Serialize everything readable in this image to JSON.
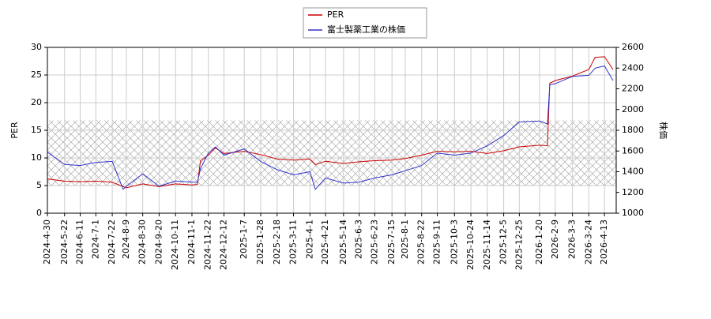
{
  "chart_data": {
    "type": "line",
    "x": [
      "2024-4-30",
      "2024-5-22",
      "2024-6-11",
      "2024-7-1",
      "2024-7-22",
      "2024-8-5",
      "2024-8-9",
      "2024-8-30",
      "2024-9-20",
      "2024-10-11",
      "2024-11-1",
      "2024-11-8",
      "2024-11-12",
      "2024-11-22",
      "2024-12-1",
      "2024-12-12",
      "2025-1-7",
      "2025-1-28",
      "2025-2-18",
      "2025-3-11",
      "2025-4-1",
      "2025-4-8",
      "2025-4-21",
      "2025-5-14",
      "2025-6-3",
      "2025-6-23",
      "2025-7-15",
      "2025-8-1",
      "2025-8-22",
      "2025-9-11",
      "2025-10-3",
      "2025-10-24",
      "2025-11-14",
      "2025-12-5",
      "2025-12-25",
      "2026-1-20",
      "2026-1-30",
      "2026-2-2",
      "2026-2-9",
      "2026-3-3",
      "2026-3-24",
      "2026-4-1",
      "2026-4-13",
      "2026-4-24"
    ],
    "series": [
      {
        "name": "PER",
        "color": "#cc0000",
        "axis": "y",
        "values": [
          6.2,
          5.8,
          5.7,
          5.8,
          5.6,
          4.8,
          4.6,
          5.3,
          4.8,
          5.3,
          5.1,
          5.2,
          9.5,
          10.5,
          11.8,
          10.8,
          11.2,
          10.6,
          9.8,
          9.6,
          9.8,
          8.8,
          9.4,
          9.0,
          9.3,
          9.5,
          9.6,
          9.9,
          10.5,
          11.2,
          11.1,
          11.2,
          10.8,
          11.3,
          12.0,
          12.3,
          12.2,
          23.5,
          24.0,
          24.8,
          26.0,
          28.2,
          28.3,
          26.0
        ]
      },
      {
        "name": "富士製薬工業の株価",
        "color": "#3333cc",
        "axis": "y2",
        "values": [
          1590,
          1470,
          1460,
          1490,
          1500,
          1230,
          1260,
          1380,
          1260,
          1310,
          1300,
          1300,
          1430,
          1580,
          1640,
          1560,
          1620,
          1500,
          1420,
          1370,
          1400,
          1230,
          1340,
          1290,
          1300,
          1340,
          1370,
          1410,
          1460,
          1580,
          1560,
          1580,
          1650,
          1750,
          1880,
          1890,
          1860,
          2240,
          2250,
          2320,
          2330,
          2400,
          2420,
          2280
        ]
      }
    ],
    "xlim": [
      "2024-4-30",
      "2026-4-28"
    ],
    "xticks": [
      "2024-4-30",
      "2024-5-22",
      "2024-6-11",
      "2024-7-1",
      "2024-7-22",
      "2024-8-9",
      "2024-8-30",
      "2024-9-20",
      "2024-10-11",
      "2024-11-1",
      "2024-11-22",
      "2024-12-12",
      "2025-1-7",
      "2025-1-28",
      "2025-2-18",
      "2025-3-11",
      "2025-4-1",
      "2025-4-21",
      "2025-5-14",
      "2025-6-3",
      "2025-6-23",
      "2025-7-15",
      "2025-8-1",
      "2025-8-22",
      "2025-9-11",
      "2025-10-3",
      "2025-10-24",
      "2025-11-14",
      "2025-12-5",
      "2025-12-25",
      "2026-1-20",
      "2026-2-9",
      "2026-3-3",
      "2026-3-24",
      "2026-4-13"
    ],
    "ylabel": "PER",
    "ylim": [
      0,
      30
    ],
    "yticks": [
      0,
      5,
      10,
      15,
      20,
      25,
      30
    ],
    "y2label": "株価",
    "y2lim": [
      1000,
      2600
    ],
    "y2ticks": [
      1000,
      1200,
      1400,
      1600,
      1800,
      2000,
      2200,
      2400,
      2600
    ],
    "shaded_range": [
      5,
      16.8
    ],
    "grid": true,
    "legend": "top"
  }
}
